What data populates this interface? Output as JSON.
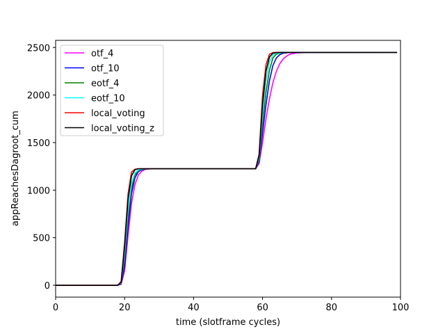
{
  "chart_data": {
    "type": "line",
    "title": "",
    "xlabel": "time (slotframe cycles)",
    "ylabel": "appReachesDagroot_cum",
    "xlim": [
      0,
      100
    ],
    "ylim": [
      -125,
      2575
    ],
    "x_ticks": [
      0,
      20,
      40,
      60,
      80,
      100
    ],
    "y_ticks": [
      0,
      500,
      1000,
      1500,
      2000,
      2500
    ],
    "grid": false,
    "legend_position": "top-left",
    "series": [
      {
        "name": "otf_4",
        "color": "#ff00ff",
        "points": [
          [
            0,
            0
          ],
          [
            18,
            0
          ],
          [
            19,
            10
          ],
          [
            20,
            150
          ],
          [
            21,
            520
          ],
          [
            22,
            860
          ],
          [
            23,
            1060
          ],
          [
            24,
            1160
          ],
          [
            25,
            1200
          ],
          [
            26,
            1218
          ],
          [
            28,
            1225
          ],
          [
            58,
            1225
          ],
          [
            59,
            1280
          ],
          [
            60,
            1500
          ],
          [
            61,
            1750
          ],
          [
            62,
            1960
          ],
          [
            63,
            2130
          ],
          [
            64,
            2250
          ],
          [
            65,
            2330
          ],
          [
            66,
            2380
          ],
          [
            67,
            2410
          ],
          [
            68,
            2430
          ],
          [
            70,
            2443
          ],
          [
            74,
            2448
          ],
          [
            99,
            2448
          ]
        ]
      },
      {
        "name": "otf_10",
        "color": "#0000ff",
        "points": [
          [
            0,
            0
          ],
          [
            18,
            0
          ],
          [
            19,
            15
          ],
          [
            20,
            200
          ],
          [
            21,
            620
          ],
          [
            22,
            960
          ],
          [
            23,
            1130
          ],
          [
            24,
            1195
          ],
          [
            25,
            1215
          ],
          [
            27,
            1225
          ],
          [
            58,
            1225
          ],
          [
            59,
            1300
          ],
          [
            60,
            1600
          ],
          [
            61,
            1900
          ],
          [
            62,
            2150
          ],
          [
            63,
            2310
          ],
          [
            64,
            2390
          ],
          [
            65,
            2425
          ],
          [
            66,
            2440
          ],
          [
            68,
            2447
          ],
          [
            99,
            2448
          ]
        ]
      },
      {
        "name": "eotf_4",
        "color": "#008000",
        "points": [
          [
            0,
            0
          ],
          [
            18,
            0
          ],
          [
            19,
            20
          ],
          [
            20,
            280
          ],
          [
            21,
            720
          ],
          [
            22,
            1020
          ],
          [
            23,
            1160
          ],
          [
            24,
            1205
          ],
          [
            25,
            1220
          ],
          [
            27,
            1225
          ],
          [
            58,
            1225
          ],
          [
            59,
            1320
          ],
          [
            60,
            1700
          ],
          [
            61,
            2030
          ],
          [
            62,
            2260
          ],
          [
            63,
            2390
          ],
          [
            64,
            2430
          ],
          [
            65,
            2443
          ],
          [
            67,
            2448
          ],
          [
            99,
            2448
          ]
        ]
      },
      {
        "name": "eotf_10",
        "color": "#00ffff",
        "points": [
          [
            0,
            0
          ],
          [
            18,
            0
          ],
          [
            19,
            25
          ],
          [
            20,
            340
          ],
          [
            21,
            790
          ],
          [
            22,
            1070
          ],
          [
            23,
            1180
          ],
          [
            24,
            1212
          ],
          [
            25,
            1222
          ],
          [
            27,
            1225
          ],
          [
            58,
            1225
          ],
          [
            59,
            1340
          ],
          [
            60,
            1800
          ],
          [
            61,
            2150
          ],
          [
            62,
            2350
          ],
          [
            63,
            2420
          ],
          [
            64,
            2442
          ],
          [
            66,
            2448
          ],
          [
            99,
            2448
          ]
        ]
      },
      {
        "name": "local_voting",
        "color": "#ff0000",
        "points": [
          [
            0,
            0
          ],
          [
            18,
            0
          ],
          [
            19,
            40
          ],
          [
            20,
            450
          ],
          [
            21,
            960
          ],
          [
            22,
            1190
          ],
          [
            23,
            1220
          ],
          [
            24,
            1225
          ],
          [
            58,
            1225
          ],
          [
            59,
            1380
          ],
          [
            60,
            2000
          ],
          [
            61,
            2320
          ],
          [
            62,
            2430
          ],
          [
            63,
            2446
          ],
          [
            64,
            2448
          ],
          [
            99,
            2448
          ]
        ]
      },
      {
        "name": "local_voting_z",
        "color": "#000000",
        "points": [
          [
            0,
            0
          ],
          [
            18,
            0
          ],
          [
            19,
            30
          ],
          [
            20,
            400
          ],
          [
            21,
            900
          ],
          [
            22,
            1150
          ],
          [
            23,
            1215
          ],
          [
            24,
            1225
          ],
          [
            58,
            1225
          ],
          [
            59,
            1360
          ],
          [
            60,
            1900
          ],
          [
            61,
            2250
          ],
          [
            62,
            2400
          ],
          [
            63,
            2440
          ],
          [
            64,
            2447
          ],
          [
            65,
            2448
          ],
          [
            99,
            2448
          ]
        ]
      }
    ]
  }
}
